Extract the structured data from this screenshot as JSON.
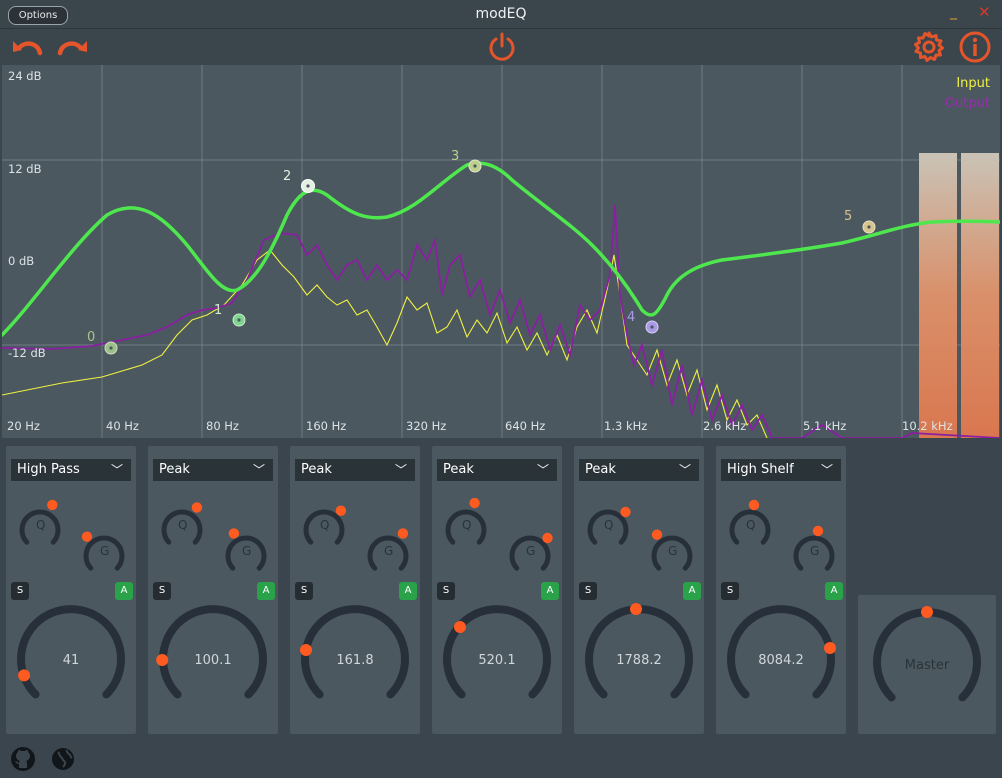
{
  "window": {
    "title": "modEQ",
    "options_label": "Options",
    "minimize_glyph": "_",
    "close_glyph": "✕"
  },
  "toolbar": {
    "undo_icon": "undo-arrow",
    "redo_icon": "redo-arrow",
    "power_icon": "power",
    "settings_icon": "gear",
    "info_icon": "info",
    "accent": "#e5552b"
  },
  "graph": {
    "db_labels": [
      "24 dB",
      "12 dB",
      "0 dB",
      "-12 dB"
    ],
    "freq_labels": [
      "20 Hz",
      "40 Hz",
      "80 Hz",
      "160 Hz",
      "320 Hz",
      "640 Hz",
      "1.3 kHz",
      "2.6 kHz",
      "5.1 kHz",
      "10.2 kHz"
    ],
    "legend": {
      "input": "Input",
      "output": "Output"
    },
    "colors": {
      "curve": "#4ee84e",
      "input": "#f0f040",
      "output": "#8a1fa2",
      "meter": "#d9774f"
    },
    "band_markers": [
      "0",
      "1",
      "2",
      "3",
      "4",
      "5"
    ]
  },
  "bands": [
    {
      "type": "High Pass",
      "freq": "41",
      "q_label": "Q",
      "g_label": "G",
      "solo": "S",
      "active": "A"
    },
    {
      "type": "Peak",
      "freq": "100.1",
      "q_label": "Q",
      "g_label": "G",
      "solo": "S",
      "active": "A"
    },
    {
      "type": "Peak",
      "freq": "161.8",
      "q_label": "Q",
      "g_label": "G",
      "solo": "S",
      "active": "A"
    },
    {
      "type": "Peak",
      "freq": "520.1",
      "q_label": "Q",
      "g_label": "G",
      "solo": "S",
      "active": "A"
    },
    {
      "type": "Peak",
      "freq": "1788.2",
      "q_label": "Q",
      "g_label": "G",
      "solo": "S",
      "active": "A"
    },
    {
      "type": "High Shelf",
      "freq": "8084.2",
      "q_label": "Q",
      "g_label": "G",
      "solo": "S",
      "active": "A"
    }
  ],
  "master": {
    "label": "Master"
  },
  "footer": {
    "github_icon": "github",
    "web_icon": "globe"
  }
}
